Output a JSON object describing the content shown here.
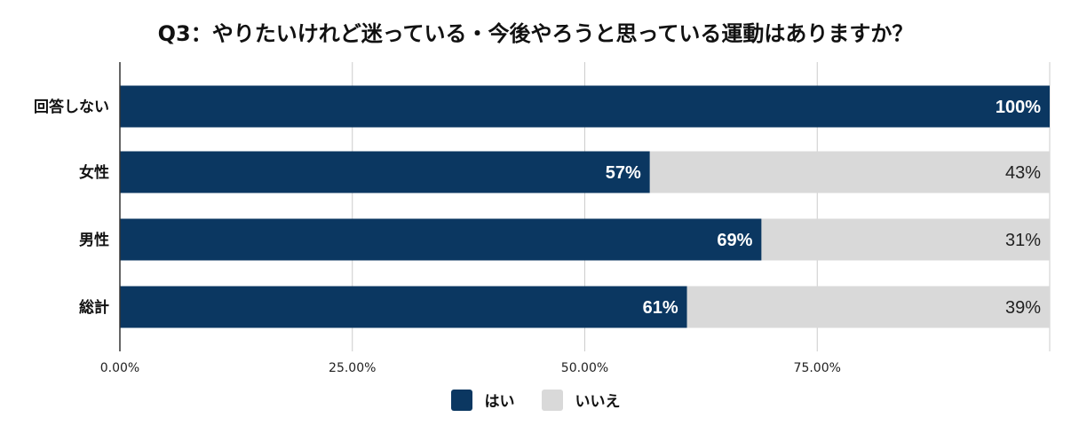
{
  "chart_data": {
    "type": "bar",
    "orientation": "horizontal",
    "stacked": true,
    "title": "Q3：やりたいけれど迷っている・今後やろうと思っている運動はありますか？",
    "categories": [
      "回答しない",
      "女性",
      "男性",
      "総計"
    ],
    "series": [
      {
        "name": "はい",
        "color": "#0b3761",
        "values": [
          100,
          57,
          69,
          61
        ],
        "labels": [
          "100%",
          "57%",
          "69%",
          "61%"
        ]
      },
      {
        "name": "いいえ",
        "color": "#d9d9d9",
        "values": [
          0,
          43,
          31,
          39
        ],
        "labels": [
          "",
          "43%",
          "31%",
          "39%"
        ]
      }
    ],
    "xlim": [
      0,
      100
    ],
    "xticks": [
      0,
      25,
      50,
      75
    ],
    "xtick_labels": [
      "0.00%",
      "25.00%",
      "50.00%",
      "75.00%"
    ],
    "grid": true,
    "legend_position": "bottom"
  }
}
